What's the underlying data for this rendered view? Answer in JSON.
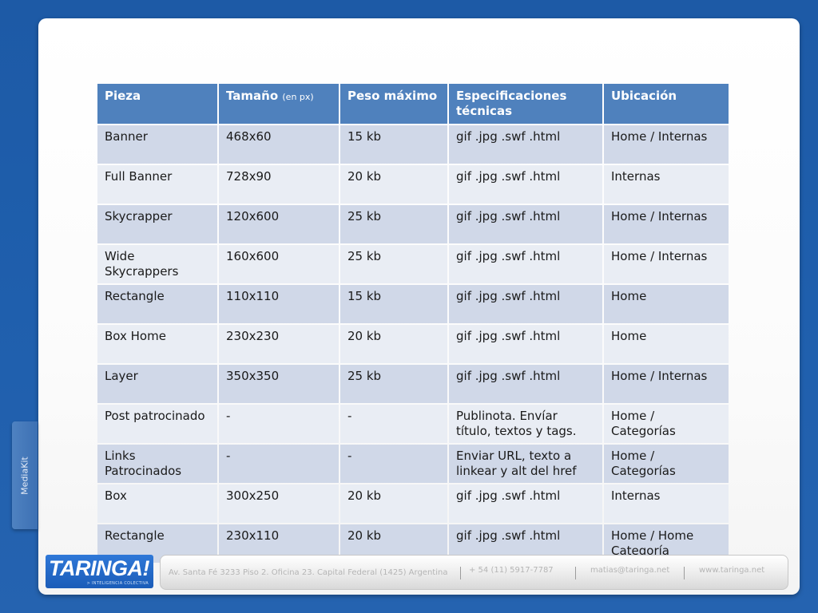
{
  "side_tab": {
    "label": "MediaKit"
  },
  "table": {
    "headers": [
      {
        "main": "Pieza",
        "small": ""
      },
      {
        "main": "Tamaño",
        "small": "(en px)"
      },
      {
        "main": "Peso máximo",
        "small": ""
      },
      {
        "main": "Especificaciones técnicas",
        "small": ""
      },
      {
        "main": "Ubicación",
        "small": ""
      }
    ],
    "rows": [
      [
        "Banner",
        "468x60",
        "15 kb",
        "gif .jpg .swf .html",
        "Home / Internas"
      ],
      [
        "Full Banner",
        "728x90",
        "20 kb",
        "gif .jpg .swf .html",
        "Internas"
      ],
      [
        "Skycrapper",
        "120x600",
        "25 kb",
        "gif .jpg .swf .html",
        "Home / Internas"
      ],
      [
        "Wide Skycrappers",
        "160x600",
        "25 kb",
        "gif .jpg .swf .html",
        "Home / Internas"
      ],
      [
        "Rectangle",
        "110x110",
        "15 kb",
        "gif .jpg .swf .html",
        "Home"
      ],
      [
        "Box Home",
        "230x230",
        "20 kb",
        "gif .jpg .swf .html",
        "Home"
      ],
      [
        "Layer",
        "350x350",
        "25 kb",
        "gif .jpg .swf .html",
        "Home / Internas"
      ],
      [
        "Post patrocinado",
        "-",
        "-",
        "Publinota. Envíar título, textos y tags.",
        "Home / Categorías"
      ],
      [
        "Links Patrocinados",
        "-",
        "-",
        "Enviar URL, texto a linkear y alt del href",
        "Home / Categorías"
      ],
      [
        "Box",
        "300x250",
        "20 kb",
        "gif .jpg .swf .html",
        "Internas"
      ],
      [
        "Rectangle",
        "230x110",
        "20 kb",
        "gif .jpg .swf .html",
        "Home / Home Categoría"
      ]
    ]
  },
  "footer": {
    "logo": {
      "word": "TARINGA!",
      "tagline": "> INTELIGENCIA COLECTIVA"
    },
    "address": "Av. Santa Fé 3233 Piso 2. Oficina 23. Capital Federal (1425) Argentina",
    "phone": "+ 54 (11) 5917-7787",
    "email": "matias@taringa.net",
    "website": "www.taringa.net"
  },
  "colors": {
    "header_bg": "#4f81bd",
    "row_odd_bg": "#d0d8e8",
    "row_even_bg": "#e9edf4",
    "page_bg": "#1f5fad"
  }
}
